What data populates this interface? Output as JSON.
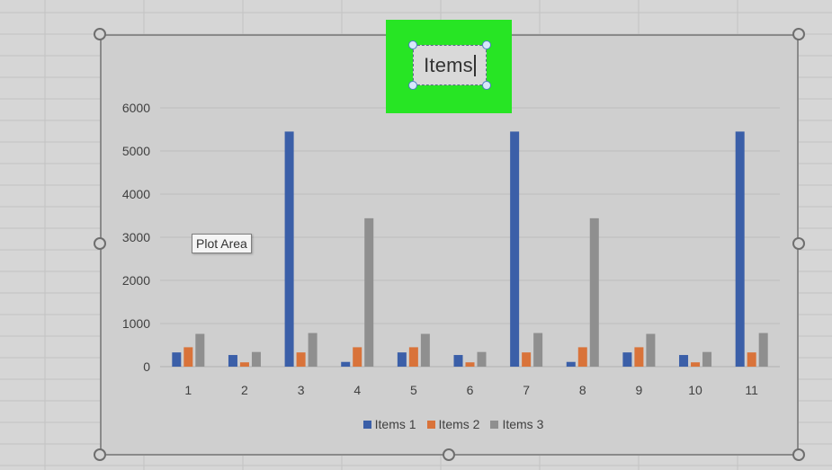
{
  "chart_data": {
    "type": "bar",
    "title": "Items",
    "categories": [
      "1",
      "2",
      "3",
      "4",
      "5",
      "6",
      "7",
      "8",
      "9",
      "10",
      "11"
    ],
    "series": [
      {
        "name": "Items 1",
        "color": "#3b5fa8",
        "values": [
          330,
          270,
          5450,
          110,
          330,
          270,
          5450,
          110,
          330,
          270,
          5450
        ]
      },
      {
        "name": "Items 2",
        "color": "#d9733a",
        "values": [
          450,
          100,
          330,
          450,
          450,
          100,
          330,
          450,
          450,
          100,
          330
        ]
      },
      {
        "name": "Items 3",
        "color": "#8f8f8f",
        "values": [
          760,
          340,
          780,
          3440,
          760,
          340,
          780,
          3440,
          760,
          340,
          780
        ]
      }
    ],
    "yticks": [
      "0",
      "1000",
      "2000",
      "3000",
      "4000",
      "5000",
      "6000"
    ],
    "ylim": [
      0,
      6000
    ],
    "xlabel": "",
    "ylabel": "",
    "grid": true,
    "legend_position": "bottom"
  },
  "tooltip": {
    "text": "Plot Area"
  }
}
